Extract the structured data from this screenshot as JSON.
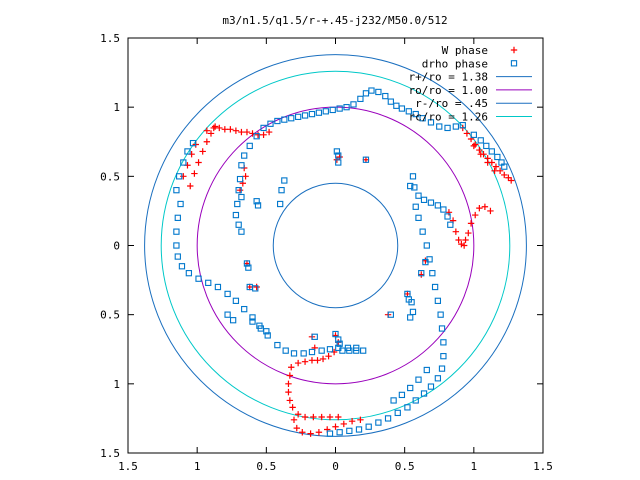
{
  "chart_data": {
    "type": "scatter",
    "title": "m3/n1.5/q1.5/r-+.45-j232/M50.0/512",
    "xlabel": "",
    "ylabel": "",
    "xlim": [
      -1.5,
      1.5
    ],
    "ylim": [
      -1.5,
      1.5
    ],
    "x_tick_values": [
      -1.5,
      -1,
      -0.5,
      0,
      0.5,
      1,
      1.5
    ],
    "x_tick_labels": [
      "1.5",
      "1",
      "0.5",
      "0",
      "0.5",
      "1",
      "1.5"
    ],
    "y_tick_values": [
      1.5,
      1,
      0.5,
      0,
      -0.5,
      -1,
      -1.5
    ],
    "y_tick_labels": [
      "1.5",
      "1",
      "0.5",
      "0",
      "0.5",
      "1",
      "1.5"
    ],
    "grid": false,
    "legend_position": "top-right",
    "colors": {
      "w_phase": "#ff0000",
      "drho_phase": "#0077cc",
      "r_plus": "#1a6fbf",
      "ro": "#9900bb",
      "r_minus": "#1a6fbf",
      "rc": "#00c8c8"
    },
    "circles": [
      {
        "name": "r+/ro = 1.38",
        "radius": 1.38,
        "color": "#1a6fbf"
      },
      {
        "name": "ro/ro = 1.00",
        "radius": 1.0,
        "color": "#9900bb"
      },
      {
        "name": "r-/ro =  .45",
        "radius": 0.45,
        "color": "#1a6fbf"
      },
      {
        "name": "rc/ro = 1.26",
        "radius": 1.26,
        "color": "#00c8c8"
      }
    ],
    "series": [
      {
        "name": "W phase",
        "marker": "plus",
        "color": "#ff0000",
        "points": [
          [
            -1.05,
            0.43
          ],
          [
            -1.02,
            0.52
          ],
          [
            -0.99,
            0.6
          ],
          [
            -0.96,
            0.68
          ],
          [
            -0.93,
            0.75
          ],
          [
            -0.9,
            0.81
          ],
          [
            -0.87,
            0.86
          ],
          [
            -1.1,
            0.5
          ],
          [
            -1.07,
            0.58
          ],
          [
            -1.04,
            0.66
          ],
          [
            -1.01,
            0.73
          ],
          [
            -0.93,
            0.83
          ],
          [
            -0.88,
            0.85
          ],
          [
            -0.84,
            0.85
          ],
          [
            -0.8,
            0.84
          ],
          [
            -0.76,
            0.84
          ],
          [
            -0.72,
            0.83
          ],
          [
            -0.68,
            0.82
          ],
          [
            -0.64,
            0.82
          ],
          [
            -0.6,
            0.81
          ],
          [
            -0.56,
            0.8
          ],
          [
            -0.52,
            0.8
          ],
          [
            -0.48,
            0.82
          ],
          [
            -0.69,
            0.4
          ],
          [
            -0.67,
            0.45
          ],
          [
            -0.65,
            0.5
          ],
          [
            -0.66,
            0.56
          ],
          [
            0.92,
            0.85
          ],
          [
            0.95,
            0.81
          ],
          [
            0.98,
            0.77
          ],
          [
            1.01,
            0.73
          ],
          [
            1.04,
            0.69
          ],
          [
            1.07,
            0.66
          ],
          [
            1.1,
            0.63
          ],
          [
            1.13,
            0.6
          ],
          [
            1.16,
            0.57
          ],
          [
            1.19,
            0.54
          ],
          [
            1.22,
            0.51
          ],
          [
            1.25,
            0.49
          ],
          [
            1.27,
            0.47
          ],
          [
            1.0,
            0.72
          ],
          [
            1.05,
            0.66
          ],
          [
            1.1,
            0.6
          ],
          [
            1.15,
            0.54
          ],
          [
            1.12,
            0.25
          ],
          [
            1.08,
            0.28
          ],
          [
            1.04,
            0.27
          ],
          [
            1.01,
            0.22
          ],
          [
            0.98,
            0.16
          ],
          [
            0.96,
            0.09
          ],
          [
            0.94,
            0.04
          ],
          [
            0.93,
            0.0
          ],
          [
            0.91,
            0.01
          ],
          [
            0.89,
            0.04
          ],
          [
            0.87,
            0.1
          ],
          [
            0.85,
            0.18
          ],
          [
            0.82,
            0.24
          ],
          [
            -0.64,
            -0.13
          ],
          [
            -0.62,
            -0.3
          ],
          [
            -0.57,
            -0.3
          ],
          [
            -0.32,
            -0.88
          ],
          [
            -0.33,
            -0.94
          ],
          [
            -0.34,
            -1.0
          ],
          [
            -0.34,
            -1.06
          ],
          [
            -0.33,
            -1.12
          ],
          [
            -0.31,
            -1.17
          ],
          [
            -0.27,
            -1.22
          ],
          [
            -0.22,
            -1.24
          ],
          [
            -0.16,
            -1.24
          ],
          [
            -0.1,
            -1.24
          ],
          [
            -0.04,
            -1.24
          ],
          [
            0.02,
            -1.24
          ],
          [
            -0.3,
            -1.26
          ],
          [
            -0.28,
            -1.32
          ],
          [
            -0.24,
            -1.35
          ],
          [
            -0.18,
            -1.36
          ],
          [
            -0.12,
            -1.35
          ],
          [
            -0.06,
            -1.33
          ],
          [
            0.0,
            -1.31
          ],
          [
            0.06,
            -1.29
          ],
          [
            0.12,
            -1.27
          ],
          [
            0.18,
            -1.26
          ],
          [
            -0.27,
            -0.85
          ],
          [
            -0.22,
            -0.84
          ],
          [
            -0.17,
            -0.83
          ],
          [
            -0.13,
            -0.83
          ],
          [
            -0.09,
            -0.82
          ],
          [
            -0.05,
            -0.8
          ],
          [
            -0.01,
            -0.77
          ],
          [
            -0.17,
            -0.66
          ],
          [
            -0.15,
            -0.74
          ],
          [
            0.0,
            -0.65
          ],
          [
            0.02,
            -0.7
          ],
          [
            0.38,
            -0.5
          ],
          [
            0.52,
            -0.35
          ],
          [
            0.62,
            -0.21
          ],
          [
            0.65,
            -0.11
          ],
          [
            0.22,
            0.62
          ],
          [
            0.03,
            0.64
          ],
          [
            0.01,
            0.62
          ]
        ]
      },
      {
        "name": "drho phase",
        "marker": "open-square",
        "color": "#0077cc",
        "points": [
          [
            -1.12,
            0.3
          ],
          [
            -1.14,
            0.2
          ],
          [
            -1.15,
            0.1
          ],
          [
            -1.15,
            0.0
          ],
          [
            -1.14,
            -0.08
          ],
          [
            -1.11,
            -0.15
          ],
          [
            -1.06,
            -0.2
          ],
          [
            -0.99,
            -0.24
          ],
          [
            -0.92,
            -0.27
          ],
          [
            -0.85,
            -0.3
          ],
          [
            -0.78,
            -0.35
          ],
          [
            -0.72,
            -0.4
          ],
          [
            -0.66,
            -0.46
          ],
          [
            -0.6,
            -0.52
          ],
          [
            -0.54,
            -0.6
          ],
          [
            -0.49,
            -0.65
          ],
          [
            -0.42,
            -0.72
          ],
          [
            -1.15,
            0.4
          ],
          [
            -1.13,
            0.5
          ],
          [
            -1.1,
            0.6
          ],
          [
            -1.07,
            0.68
          ],
          [
            -1.03,
            0.74
          ],
          [
            -0.36,
            -0.76
          ],
          [
            -0.3,
            -0.78
          ],
          [
            -0.23,
            -0.78
          ],
          [
            -0.17,
            -0.77
          ],
          [
            -0.1,
            -0.76
          ],
          [
            -0.04,
            -0.75
          ],
          [
            0.02,
            -0.74
          ],
          [
            0.09,
            -0.74
          ],
          [
            0.15,
            -0.74
          ],
          [
            -0.7,
            0.4
          ],
          [
            -0.71,
            0.3
          ],
          [
            -0.72,
            0.22
          ],
          [
            -0.7,
            0.15
          ],
          [
            -0.68,
            0.1
          ],
          [
            -0.68,
            0.35
          ],
          [
            -0.69,
            0.48
          ],
          [
            -0.68,
            0.58
          ],
          [
            -0.66,
            0.65
          ],
          [
            -0.62,
            0.72
          ],
          [
            -0.57,
            0.79
          ],
          [
            -0.52,
            0.85
          ],
          [
            -0.47,
            0.88
          ],
          [
            -0.42,
            0.9
          ],
          [
            -0.37,
            0.91
          ],
          [
            -0.32,
            0.92
          ],
          [
            -0.27,
            0.93
          ],
          [
            -0.22,
            0.94
          ],
          [
            -0.17,
            0.95
          ],
          [
            -0.12,
            0.96
          ],
          [
            -0.07,
            0.97
          ],
          [
            -0.02,
            0.98
          ],
          [
            0.03,
            0.99
          ],
          [
            0.08,
            1.0
          ],
          [
            0.13,
            1.02
          ],
          [
            0.18,
            1.06
          ],
          [
            0.22,
            1.1
          ],
          [
            0.26,
            1.12
          ],
          [
            0.31,
            1.11
          ],
          [
            0.36,
            1.08
          ],
          [
            0.4,
            1.04
          ],
          [
            0.44,
            1.01
          ],
          [
            0.48,
            0.99
          ],
          [
            0.53,
            0.97
          ],
          [
            0.58,
            0.95
          ],
          [
            0.63,
            0.92
          ],
          [
            0.69,
            0.89
          ],
          [
            0.75,
            0.86
          ],
          [
            0.81,
            0.85
          ],
          [
            0.87,
            0.86
          ],
          [
            0.92,
            0.87
          ],
          [
            0.56,
            0.5
          ],
          [
            0.57,
            0.42
          ],
          [
            0.6,
            0.36
          ],
          [
            0.64,
            0.33
          ],
          [
            0.69,
            0.31
          ],
          [
            0.74,
            0.29
          ],
          [
            0.78,
            0.26
          ],
          [
            0.81,
            0.21
          ],
          [
            0.83,
            0.15
          ],
          [
            0.54,
            0.43
          ],
          [
            0.58,
            0.28
          ],
          [
            0.6,
            0.2
          ],
          [
            0.63,
            0.1
          ],
          [
            0.66,
            0.0
          ],
          [
            0.68,
            -0.1
          ],
          [
            0.7,
            -0.2
          ],
          [
            0.72,
            -0.3
          ],
          [
            0.74,
            -0.4
          ],
          [
            0.76,
            -0.5
          ],
          [
            0.77,
            -0.6
          ],
          [
            0.78,
            -0.7
          ],
          [
            0.78,
            -0.8
          ],
          [
            0.77,
            -0.89
          ],
          [
            0.74,
            -0.96
          ],
          [
            0.69,
            -1.02
          ],
          [
            0.64,
            -1.07
          ],
          [
            0.58,
            -1.12
          ],
          [
            0.52,
            -1.17
          ],
          [
            0.45,
            -1.21
          ],
          [
            0.38,
            -1.25
          ],
          [
            0.31,
            -1.28
          ],
          [
            0.24,
            -1.31
          ],
          [
            0.17,
            -1.33
          ],
          [
            0.1,
            -1.34
          ],
          [
            0.03,
            -1.35
          ],
          [
            -0.04,
            -1.36
          ],
          [
            0.66,
            -0.9
          ],
          [
            0.6,
            -0.97
          ],
          [
            0.54,
            -1.03
          ],
          [
            0.48,
            -1.08
          ],
          [
            0.42,
            -1.12
          ],
          [
            1.2,
            0.6
          ],
          [
            1.17,
            0.64
          ],
          [
            1.13,
            0.68
          ],
          [
            1.09,
            0.72
          ],
          [
            1.05,
            0.76
          ],
          [
            1.0,
            0.8
          ],
          [
            1.22,
            0.57
          ],
          [
            0.52,
            -0.35
          ],
          [
            0.53,
            -0.39
          ],
          [
            0.55,
            -0.41
          ],
          [
            0.56,
            -0.48
          ],
          [
            0.54,
            -0.52
          ],
          [
            0.4,
            -0.5
          ],
          [
            0.62,
            -0.2
          ],
          [
            0.65,
            -0.12
          ],
          [
            0.22,
            0.62
          ],
          [
            0.02,
            0.65
          ],
          [
            0.02,
            0.6
          ],
          [
            0.01,
            0.68
          ],
          [
            -0.37,
            0.47
          ],
          [
            -0.39,
            0.4
          ],
          [
            -0.4,
            0.3
          ],
          [
            -0.57,
            0.32
          ],
          [
            -0.56,
            0.29
          ],
          [
            -0.62,
            -0.3
          ],
          [
            -0.58,
            -0.31
          ],
          [
            -0.64,
            -0.13
          ],
          [
            -0.63,
            -0.16
          ],
          [
            -0.15,
            -0.66
          ],
          [
            0.0,
            -0.64
          ],
          [
            0.02,
            -0.68
          ],
          [
            0.03,
            -0.71
          ],
          [
            0.05,
            -0.76
          ],
          [
            0.1,
            -0.76
          ],
          [
            0.15,
            -0.76
          ],
          [
            0.2,
            -0.76
          ],
          [
            -0.6,
            -0.55
          ],
          [
            -0.55,
            -0.58
          ],
          [
            -0.5,
            -0.62
          ],
          [
            -0.78,
            -0.5
          ],
          [
            -0.74,
            -0.54
          ]
        ]
      }
    ]
  }
}
